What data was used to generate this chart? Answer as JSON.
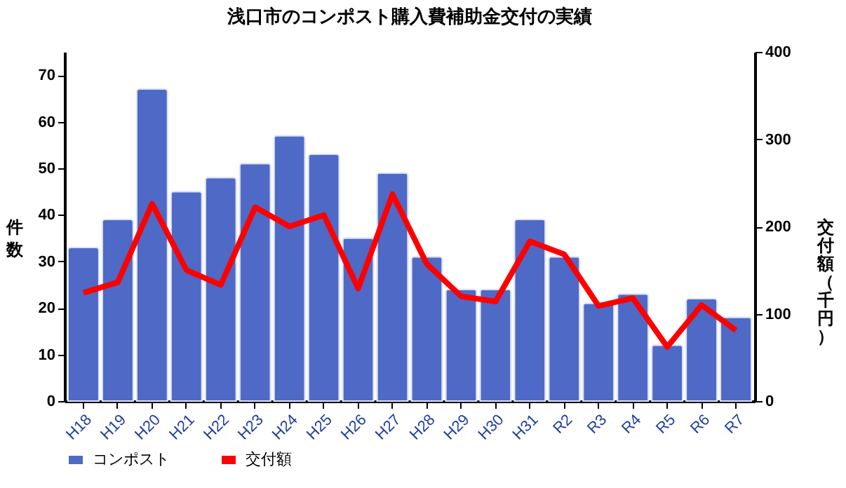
{
  "chart_data": {
    "type": "bar",
    "title": "浅口市のコンポスト購入費補助金交付の実績",
    "ylabel": "件数",
    "y2label": "交付額（千円）",
    "categories": [
      "H18",
      "H19",
      "H20",
      "H21",
      "H22",
      "H23",
      "H24",
      "H25",
      "H26",
      "H27",
      "H28",
      "H29",
      "H30",
      "H31",
      "R2",
      "R3",
      "R4",
      "R5",
      "R6",
      "R7"
    ],
    "series": [
      {
        "name": "コンポスト",
        "color": "#4f69c6",
        "values": [
          33,
          39,
          67,
          45,
          48,
          51,
          57,
          53,
          35,
          49,
          31,
          24,
          24,
          39,
          31,
          21,
          23,
          12,
          22,
          18
        ]
      },
      {
        "name": "交付額",
        "type": "line",
        "axis": "y2",
        "color": "#ff0000",
        "values": [
          124,
          136,
          226,
          150,
          133,
          222,
          200,
          213,
          129,
          237,
          157,
          120,
          114,
          183,
          168,
          109,
          118,
          62,
          110,
          81
        ]
      }
    ],
    "ylim": [
      0,
      75
    ],
    "yticks": [
      0,
      10,
      20,
      30,
      40,
      50,
      60,
      70
    ],
    "y2lim": [
      0,
      400
    ],
    "y2ticks": [
      0,
      100,
      200,
      300,
      400
    ],
    "grid": false,
    "legend": "bottom",
    "marker": "none",
    "line_style": "solid"
  }
}
